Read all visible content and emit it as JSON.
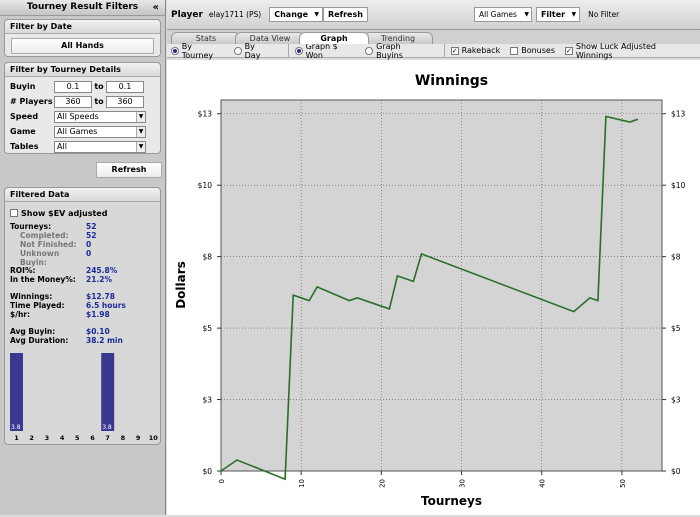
{
  "sidebar": {
    "title": "Tourney Result Filters",
    "collapse_glyph": "«",
    "date_section": {
      "title": "Filter by Date",
      "button": "All Hands"
    },
    "details_section": {
      "title": "Filter by Tourney Details",
      "buyin": {
        "label": "Buyin",
        "from": "0.1",
        "to_label": "to",
        "to": "0.1"
      },
      "players": {
        "label": "# Players",
        "from": "360",
        "to_label": "to",
        "to": "360"
      },
      "speed": {
        "label": "Speed",
        "value": "All Speeds"
      },
      "game": {
        "label": "Game",
        "value": "All Games"
      },
      "tables": {
        "label": "Tables",
        "value": "All"
      }
    },
    "refresh_button": "Refresh",
    "filtered": {
      "title": "Filtered Data",
      "ev_checkbox": "Show $EV adjusted",
      "stats": [
        {
          "key": "Tourneys:",
          "value": "52",
          "sub": false
        },
        {
          "key": "Completed:",
          "value": "52",
          "sub": true
        },
        {
          "key": "Not Finished:",
          "value": "0",
          "sub": true
        },
        {
          "key": "Unknown Buyin:",
          "value": "0",
          "sub": true
        },
        {
          "key": "ROI%:",
          "value": "245.8%",
          "sub": false
        },
        {
          "key": "In the Money%:",
          "value": "21.2%",
          "sub": false
        },
        {
          "key": "Winnings:",
          "value": "$12.78",
          "sub": false
        },
        {
          "key": "Time Played:",
          "value": "6.5 hours",
          "sub": false
        },
        {
          "key": "$/hr:",
          "value": "$1.98",
          "sub": false
        },
        {
          "key": "Avg Buyin:",
          "value": "$0.10",
          "sub": false
        },
        {
          "key": "Avg Duration:",
          "value": "38.2 min",
          "sub": false
        }
      ],
      "finish_histogram": {
        "places": [
          "1",
          "2",
          "3",
          "4",
          "5",
          "6",
          "7",
          "8",
          "9",
          "10"
        ],
        "values": [
          3.8,
          0,
          0,
          0,
          0,
          0,
          3.8,
          0,
          0,
          0
        ],
        "max": 3.8,
        "bar_labels": [
          "3.8",
          "",
          "",
          "",
          "",
          "",
          "3.8",
          "",
          "",
          ""
        ],
        "bar_color": "#3a3890"
      }
    }
  },
  "toolbar": {
    "player_label": "Player",
    "player_name": "elay1711 (PS)",
    "change_button": "Change",
    "refresh_button": "Refresh",
    "games_select": "All Games",
    "filter_button": "Filter",
    "filter_status": "No Filter"
  },
  "tabs": [
    {
      "label": "Stats",
      "active": false
    },
    {
      "label": "Data View",
      "active": false
    },
    {
      "label": "Graph",
      "active": true
    },
    {
      "label": "Trending",
      "active": false
    }
  ],
  "options": {
    "by_tourney": "By Tourney",
    "by_day": "By Day",
    "graph_won": "Graph $ Won",
    "graph_buyins": "Graph Buyins",
    "rakeback": "Rakeback",
    "bonuses": "Bonuses",
    "luck": "Show Luck Adjusted Winnings"
  },
  "chart_data": {
    "type": "line",
    "title": "Winnings",
    "xlabel": "Tourneys",
    "ylabel": "Dollars",
    "xlim": [
      0,
      55
    ],
    "ylim": [
      0,
      13.5
    ],
    "x_ticks": [
      0,
      10,
      20,
      30,
      40,
      50
    ],
    "y_ticks": [
      0,
      2.6,
      5.2,
      7.8,
      10.4,
      13
    ],
    "y_tick_labels": [
      "$0",
      "$3",
      "$5",
      "$8",
      "$10",
      "$13"
    ],
    "grid": true,
    "line_color": "#2a6e2a",
    "series": [
      {
        "x": [
          0,
          2,
          8,
          9,
          11,
          12,
          16,
          17,
          21,
          22,
          24,
          25,
          44,
          46,
          47,
          48,
          51,
          52
        ],
        "y": [
          0,
          0.4,
          -0.3,
          6.4,
          6.2,
          6.7,
          6.2,
          6.3,
          5.9,
          7.1,
          6.9,
          7.9,
          5.8,
          6.3,
          6.2,
          12.9,
          12.7,
          12.8
        ]
      }
    ]
  }
}
